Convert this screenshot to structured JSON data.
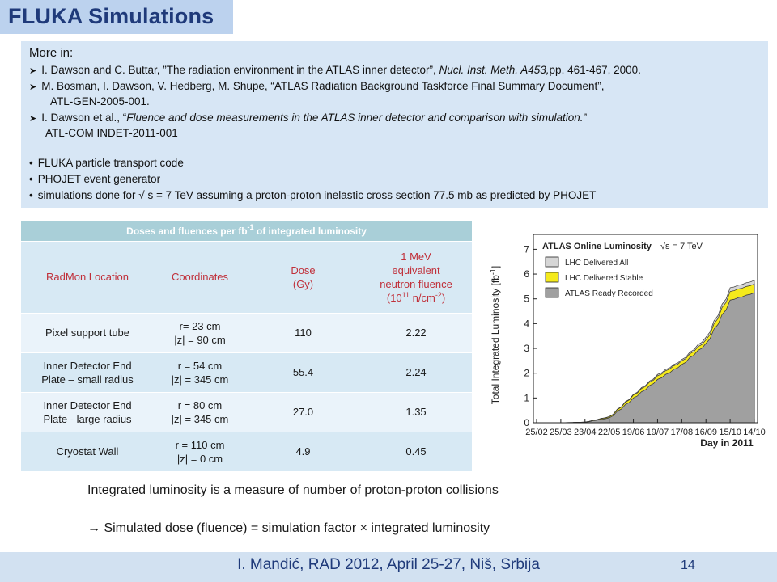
{
  "title": "FLUKA Simulations",
  "refs": {
    "heading": "More in:",
    "ref1": {
      "a": "I. Dawson and C. Buttar, ”The radiation environment in the ATLAS inner detector”, ",
      "b": "Nucl. Inst. Meth. A453,",
      "c": "pp. 461-467, 2000."
    },
    "ref2": {
      "a": "M. Bosman, I. Dawson, V. Hedberg, M. Shupe, “ATLAS Radiation Background Taskforce Final Summary Document”,",
      "b": "ATL-GEN-2005-001."
    },
    "ref3": {
      "a": "I. Dawson et al., “",
      "b": "Fluence and dose measurements in the ATLAS inner detector and comparison with simulation.",
      "c": "”",
      "d": "ATL-COM INDET-2011-001"
    },
    "bullets": [
      "FLUKA particle transport code",
      "PHOJET event generator",
      "simulations done for √ s = 7 TeV assuming a proton-proton inelastic cross section 77.5 mb as predicted by   PHOJET"
    ]
  },
  "table": {
    "caption_a": "Doses and fluences per fb",
    "caption_sup": "-1",
    "caption_b": " of integrated luminosity",
    "headers": {
      "location": "RadMon Location",
      "coords": "Coordinates",
      "dose_a": "Dose",
      "dose_b": "(Gy)",
      "fluence_a": "1 MeV",
      "fluence_b": "equivalent",
      "fluence_c": "neutron fluence",
      "fluence_d": "(10",
      "fluence_sup1": "11",
      "fluence_e": " n/cm",
      "fluence_sup2": "-2",
      "fluence_f": ")"
    },
    "rows": [
      {
        "loc_a": "Pixel support tube",
        "loc_b": "",
        "c1": "r= 23 cm",
        "c2": "|z| = 90 cm",
        "dose": "110",
        "fluence": "2.22"
      },
      {
        "loc_a": "Inner Detector End",
        "loc_b": "Plate – small radius",
        "c1": "r = 54 cm",
        "c2": "|z| = 345 cm",
        "dose": "55.4",
        "fluence": "2.24"
      },
      {
        "loc_a": "Inner Detector End",
        "loc_b": "Plate - large radius",
        "c1": "r = 80 cm",
        "c2": "|z| = 345 cm",
        "dose": "27.0",
        "fluence": "1.35"
      },
      {
        "loc_a": "Cryostat Wall",
        "loc_b": "",
        "c1": "r = 110 cm",
        "c2": "|z| = 0 cm",
        "dose": "4.9",
        "fluence": "0.45"
      }
    ]
  },
  "chart_data": {
    "type": "area",
    "title": "ATLAS Online Luminosity",
    "annotation": "√s = 7 TeV",
    "ylabel": "Total Integrated Luminosity [fb",
    "ylabel_sup": "-1",
    "ylabel_end": "]",
    "xlabel": "Day in 2011",
    "ylim": [
      0,
      7.6
    ],
    "yticks": [
      "0",
      "1",
      "2",
      "3",
      "4",
      "5",
      "6",
      "7"
    ],
    "x": [
      "25/02",
      "25/03",
      "23/04",
      "22/05",
      "19/06",
      "19/07",
      "17/08",
      "16/09",
      "15/10",
      "14/10"
    ],
    "legend_position": "top-left",
    "colors": {
      "all": "#d6d6d6",
      "stable": "#f5ea1c",
      "recorded": "#a0a0a0"
    },
    "series": [
      {
        "name": "LHC Delivered All",
        "values": [
          0.0,
          0.0,
          0.03,
          0.25,
          1.15,
          1.95,
          2.55,
          3.45,
          5.45,
          5.75
        ]
      },
      {
        "name": "LHC Delivered Stable",
        "values": [
          0.0,
          0.0,
          0.03,
          0.24,
          1.12,
          1.9,
          2.5,
          3.35,
          5.3,
          5.6
        ]
      },
      {
        "name": "ATLAS Ready Recorded",
        "values": [
          0.0,
          0.0,
          0.02,
          0.2,
          1.0,
          1.75,
          2.35,
          3.2,
          4.95,
          5.25
        ]
      }
    ]
  },
  "statements": {
    "s1": "Integrated luminosity is a measure of number of proton-proton collisions",
    "s2": " Simulated dose (fluence) = simulation factor × integrated luminosity"
  },
  "footer": {
    "text": "I. Mandić, RAD 2012, April 25-27, Niš, Srbija",
    "page": "14"
  }
}
